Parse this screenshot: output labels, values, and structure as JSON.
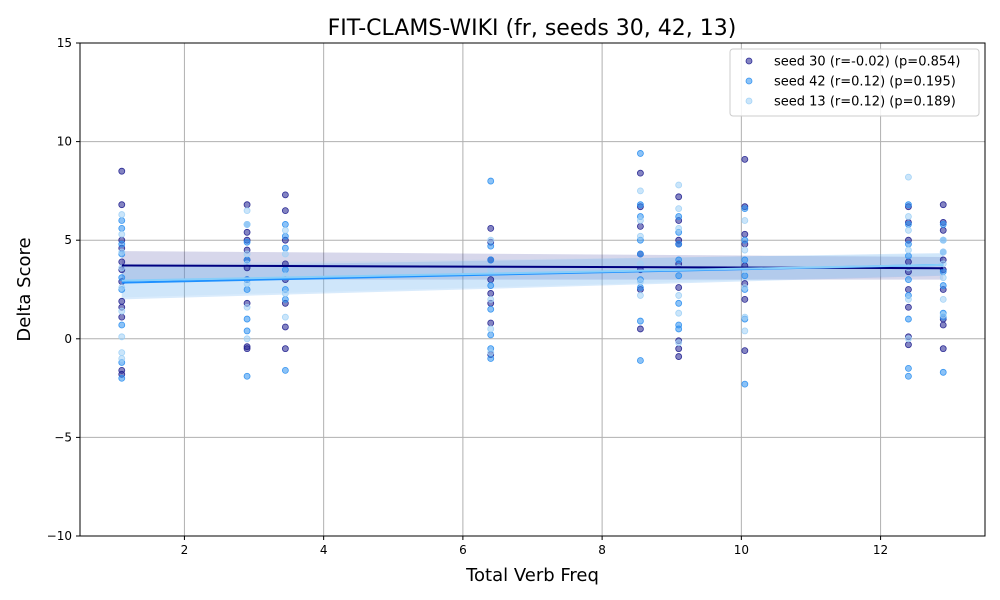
{
  "chart_data": {
    "type": "scatter",
    "title": "FIT-CLAMS-WIKI (fr, seeds 30, 42, 13)",
    "xlabel": "Total Verb Freq",
    "ylabel": "Delta Score",
    "xlim": [
      0.5,
      13.5
    ],
    "ylim": [
      -10,
      15
    ],
    "xticks": [
      2,
      4,
      6,
      8,
      10,
      12
    ],
    "yticks": [
      -10,
      -5,
      0,
      5,
      10,
      15
    ],
    "ytick_labels": [
      "−10",
      "−5",
      "0",
      "5",
      "10",
      "15"
    ],
    "grid": true,
    "legend_position": "top-right",
    "series": [
      {
        "name": "seed 30 (r=-0.02) (p=0.854)",
        "color": "#1f1f8f",
        "fit": {
          "x": [
            1.1,
            12.9
          ],
          "y": [
            3.72,
            3.58
          ],
          "band_lo": [
            3.0,
            3.0
          ],
          "band_hi": [
            4.45,
            4.15
          ]
        },
        "points": [
          [
            1.1,
            8.5
          ],
          [
            1.1,
            6.8
          ],
          [
            1.1,
            5.0
          ],
          [
            1.1,
            4.6
          ],
          [
            1.1,
            3.9
          ],
          [
            1.1,
            3.5
          ],
          [
            1.1,
            2.9
          ],
          [
            1.1,
            1.9
          ],
          [
            1.1,
            1.6
          ],
          [
            1.1,
            1.1
          ],
          [
            1.1,
            -1.6
          ],
          [
            1.1,
            -1.8
          ],
          [
            2.9,
            6.8
          ],
          [
            2.9,
            5.4
          ],
          [
            2.9,
            5.0
          ],
          [
            2.9,
            4.5
          ],
          [
            2.9,
            4.0
          ],
          [
            2.9,
            3.6
          ],
          [
            2.9,
            3.0
          ],
          [
            2.9,
            1.8
          ],
          [
            2.9,
            -0.4
          ],
          [
            2.9,
            -0.5
          ],
          [
            3.45,
            7.3
          ],
          [
            3.45,
            6.5
          ],
          [
            3.45,
            5.0
          ],
          [
            3.45,
            3.8
          ],
          [
            3.45,
            3.0
          ],
          [
            3.45,
            1.8
          ],
          [
            3.45,
            0.6
          ],
          [
            3.45,
            -0.5
          ],
          [
            6.4,
            5.6
          ],
          [
            6.4,
            4.9
          ],
          [
            6.4,
            4.0
          ],
          [
            6.4,
            3.0
          ],
          [
            6.4,
            2.3
          ],
          [
            6.4,
            1.8
          ],
          [
            6.4,
            0.8
          ],
          [
            6.4,
            -0.8
          ],
          [
            8.55,
            8.4
          ],
          [
            8.55,
            6.7
          ],
          [
            8.55,
            5.7
          ],
          [
            8.55,
            4.3
          ],
          [
            8.55,
            3.5
          ],
          [
            8.55,
            2.5
          ],
          [
            8.55,
            0.5
          ],
          [
            9.1,
            7.2
          ],
          [
            9.1,
            6.0
          ],
          [
            9.1,
            5.0
          ],
          [
            9.1,
            4.8
          ],
          [
            9.1,
            3.8
          ],
          [
            9.1,
            2.6
          ],
          [
            9.1,
            -0.1
          ],
          [
            9.1,
            -0.5
          ],
          [
            9.1,
            -0.9
          ],
          [
            10.05,
            9.1
          ],
          [
            10.05,
            6.7
          ],
          [
            10.05,
            5.3
          ],
          [
            10.05,
            4.8
          ],
          [
            10.05,
            3.7
          ],
          [
            10.05,
            2.8
          ],
          [
            10.05,
            2.0
          ],
          [
            10.05,
            -0.6
          ],
          [
            12.4,
            6.7
          ],
          [
            12.4,
            5.9
          ],
          [
            12.4,
            5.0
          ],
          [
            12.4,
            3.9
          ],
          [
            12.4,
            3.4
          ],
          [
            12.4,
            2.5
          ],
          [
            12.4,
            1.6
          ],
          [
            12.4,
            0.1
          ],
          [
            12.4,
            -0.3
          ],
          [
            12.9,
            6.8
          ],
          [
            12.9,
            5.9
          ],
          [
            12.9,
            5.5
          ],
          [
            12.9,
            4.0
          ],
          [
            12.9,
            3.5
          ],
          [
            12.9,
            2.5
          ],
          [
            12.9,
            1.0
          ],
          [
            12.9,
            0.7
          ],
          [
            12.9,
            -0.5
          ]
        ]
      },
      {
        "name": "seed 42 (r=0.12) (p=0.195)",
        "color": "#2b8ff0",
        "fit": {
          "x": [
            1.1,
            12.9
          ],
          "y": [
            2.85,
            3.75
          ],
          "band_lo": [
            2.0,
            3.2
          ],
          "band_hi": [
            3.65,
            4.35
          ]
        },
        "points": [
          [
            1.1,
            6.0
          ],
          [
            1.1,
            5.6
          ],
          [
            1.1,
            4.8
          ],
          [
            1.1,
            4.3
          ],
          [
            1.1,
            3.1
          ],
          [
            1.1,
            2.5
          ],
          [
            1.1,
            0.7
          ],
          [
            1.1,
            -1.2
          ],
          [
            1.1,
            -2.0
          ],
          [
            2.9,
            5.8
          ],
          [
            2.9,
            4.9
          ],
          [
            2.9,
            4.0
          ],
          [
            2.9,
            3.0
          ],
          [
            2.9,
            2.5
          ],
          [
            2.9,
            1.0
          ],
          [
            2.9,
            0.4
          ],
          [
            2.9,
            -1.9
          ],
          [
            3.45,
            5.8
          ],
          [
            3.45,
            5.2
          ],
          [
            3.45,
            4.6
          ],
          [
            3.45,
            3.5
          ],
          [
            3.45,
            2.5
          ],
          [
            3.45,
            2.0
          ],
          [
            3.45,
            -1.6
          ],
          [
            6.4,
            8.0
          ],
          [
            6.4,
            4.7
          ],
          [
            6.4,
            4.0
          ],
          [
            6.4,
            2.7
          ],
          [
            6.4,
            1.5
          ],
          [
            6.4,
            0.2
          ],
          [
            6.4,
            -0.5
          ],
          [
            6.4,
            -1.0
          ],
          [
            8.55,
            9.4
          ],
          [
            8.55,
            6.8
          ],
          [
            8.55,
            6.2
          ],
          [
            8.55,
            5.0
          ],
          [
            8.55,
            4.3
          ],
          [
            8.55,
            3.0
          ],
          [
            8.55,
            2.6
          ],
          [
            8.55,
            0.9
          ],
          [
            8.55,
            -1.1
          ],
          [
            9.1,
            6.2
          ],
          [
            9.1,
            5.4
          ],
          [
            9.1,
            4.8
          ],
          [
            9.1,
            4.0
          ],
          [
            9.1,
            3.2
          ],
          [
            9.1,
            1.8
          ],
          [
            9.1,
            0.7
          ],
          [
            9.1,
            0.5
          ],
          [
            10.05,
            6.6
          ],
          [
            10.05,
            5.0
          ],
          [
            10.05,
            4.0
          ],
          [
            10.05,
            3.2
          ],
          [
            10.05,
            2.5
          ],
          [
            10.05,
            1.0
          ],
          [
            10.05,
            -2.3
          ],
          [
            12.4,
            6.8
          ],
          [
            12.4,
            5.8
          ],
          [
            12.4,
            4.8
          ],
          [
            12.4,
            4.2
          ],
          [
            12.4,
            3.0
          ],
          [
            12.4,
            2.2
          ],
          [
            12.4,
            1.0
          ],
          [
            12.4,
            -1.5
          ],
          [
            12.4,
            -1.9
          ],
          [
            12.9,
            5.8
          ],
          [
            12.9,
            5.0
          ],
          [
            12.9,
            4.4
          ],
          [
            12.9,
            3.4
          ],
          [
            12.9,
            2.7
          ],
          [
            12.9,
            1.3
          ],
          [
            12.9,
            1.1
          ],
          [
            12.9,
            -1.7
          ]
        ]
      },
      {
        "name": "seed 13 (r=0.12) (p=0.189)",
        "color": "#9fd0f6",
        "fit": {
          "x": [
            1.1,
            12.9
          ],
          "y": [
            2.95,
            3.75
          ],
          "band_lo": [
            2.1,
            3.25
          ],
          "band_hi": [
            3.8,
            4.3
          ]
        },
        "points": [
          [
            1.1,
            6.3
          ],
          [
            1.1,
            5.3
          ],
          [
            1.1,
            4.4
          ],
          [
            1.1,
            3.6
          ],
          [
            1.1,
            2.6
          ],
          [
            1.1,
            1.4
          ],
          [
            1.1,
            0.1
          ],
          [
            1.1,
            -0.7
          ],
          [
            1.1,
            -1.0
          ],
          [
            2.9,
            6.5
          ],
          [
            2.9,
            5.8
          ],
          [
            2.9,
            4.3
          ],
          [
            2.9,
            3.8
          ],
          [
            2.9,
            2.8
          ],
          [
            2.9,
            1.6
          ],
          [
            2.9,
            0.0
          ],
          [
            3.45,
            5.5
          ],
          [
            3.45,
            4.3
          ],
          [
            3.45,
            3.2
          ],
          [
            3.45,
            2.3
          ],
          [
            3.45,
            1.1
          ],
          [
            6.4,
            5.0
          ],
          [
            6.4,
            3.5
          ],
          [
            6.4,
            2.0
          ],
          [
            6.4,
            0.5
          ],
          [
            6.4,
            -0.7
          ],
          [
            8.55,
            7.5
          ],
          [
            8.55,
            6.0
          ],
          [
            8.55,
            5.2
          ],
          [
            8.55,
            3.8
          ],
          [
            8.55,
            2.9
          ],
          [
            8.55,
            2.2
          ],
          [
            9.1,
            7.8
          ],
          [
            9.1,
            6.6
          ],
          [
            9.1,
            5.6
          ],
          [
            9.1,
            3.6
          ],
          [
            9.1,
            2.2
          ],
          [
            9.1,
            1.3
          ],
          [
            9.1,
            -0.2
          ],
          [
            10.05,
            6.0
          ],
          [
            10.05,
            4.5
          ],
          [
            10.05,
            3.5
          ],
          [
            10.05,
            2.6
          ],
          [
            10.05,
            1.1
          ],
          [
            10.05,
            0.4
          ],
          [
            12.4,
            8.2
          ],
          [
            12.4,
            6.2
          ],
          [
            12.4,
            5.5
          ],
          [
            12.4,
            4.5
          ],
          [
            12.4,
            3.6
          ],
          [
            12.4,
            2.0
          ],
          [
            12.4,
            0.0
          ],
          [
            12.9,
            5.0
          ],
          [
            12.9,
            4.4
          ],
          [
            12.9,
            3.8
          ],
          [
            12.9,
            3.1
          ],
          [
            12.9,
            2.0
          ],
          [
            12.9,
            1.2
          ]
        ]
      }
    ]
  }
}
